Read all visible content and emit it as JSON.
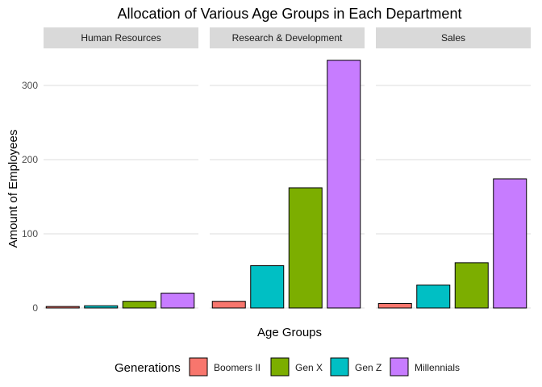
{
  "chart_data": {
    "type": "bar",
    "title": "Allocation of Various Age Groups in Each Department",
    "xlabel": "Age Groups",
    "ylabel": "Amount of Employees",
    "ylim": [
      0,
      335
    ],
    "yticks": [
      0,
      100,
      200,
      300
    ],
    "grid": true,
    "legend_position": "bottom",
    "legend_title": "Generations",
    "categories": [
      "Boomers II",
      "Gen X",
      "Gen Z",
      "Millennials"
    ],
    "bar_order": [
      "Boomers II",
      "Gen Z",
      "Gen X",
      "Millennials"
    ],
    "colors": {
      "Boomers II": "#F8766D",
      "Gen X": "#7CAE00",
      "Gen Z": "#00BFC4",
      "Millennials": "#C77CFF"
    },
    "facets": [
      {
        "name": "Human Resources",
        "values": {
          "Boomers II": 2,
          "Gen Z": 3,
          "Gen X": 9,
          "Millennials": 20
        }
      },
      {
        "name": "Research & Development",
        "values": {
          "Boomers II": 9,
          "Gen Z": 57,
          "Gen X": 162,
          "Millennials": 334
        }
      },
      {
        "name": "Sales",
        "values": {
          "Boomers II": 6,
          "Gen Z": 31,
          "Gen X": 61,
          "Millennials": 174
        }
      }
    ]
  }
}
